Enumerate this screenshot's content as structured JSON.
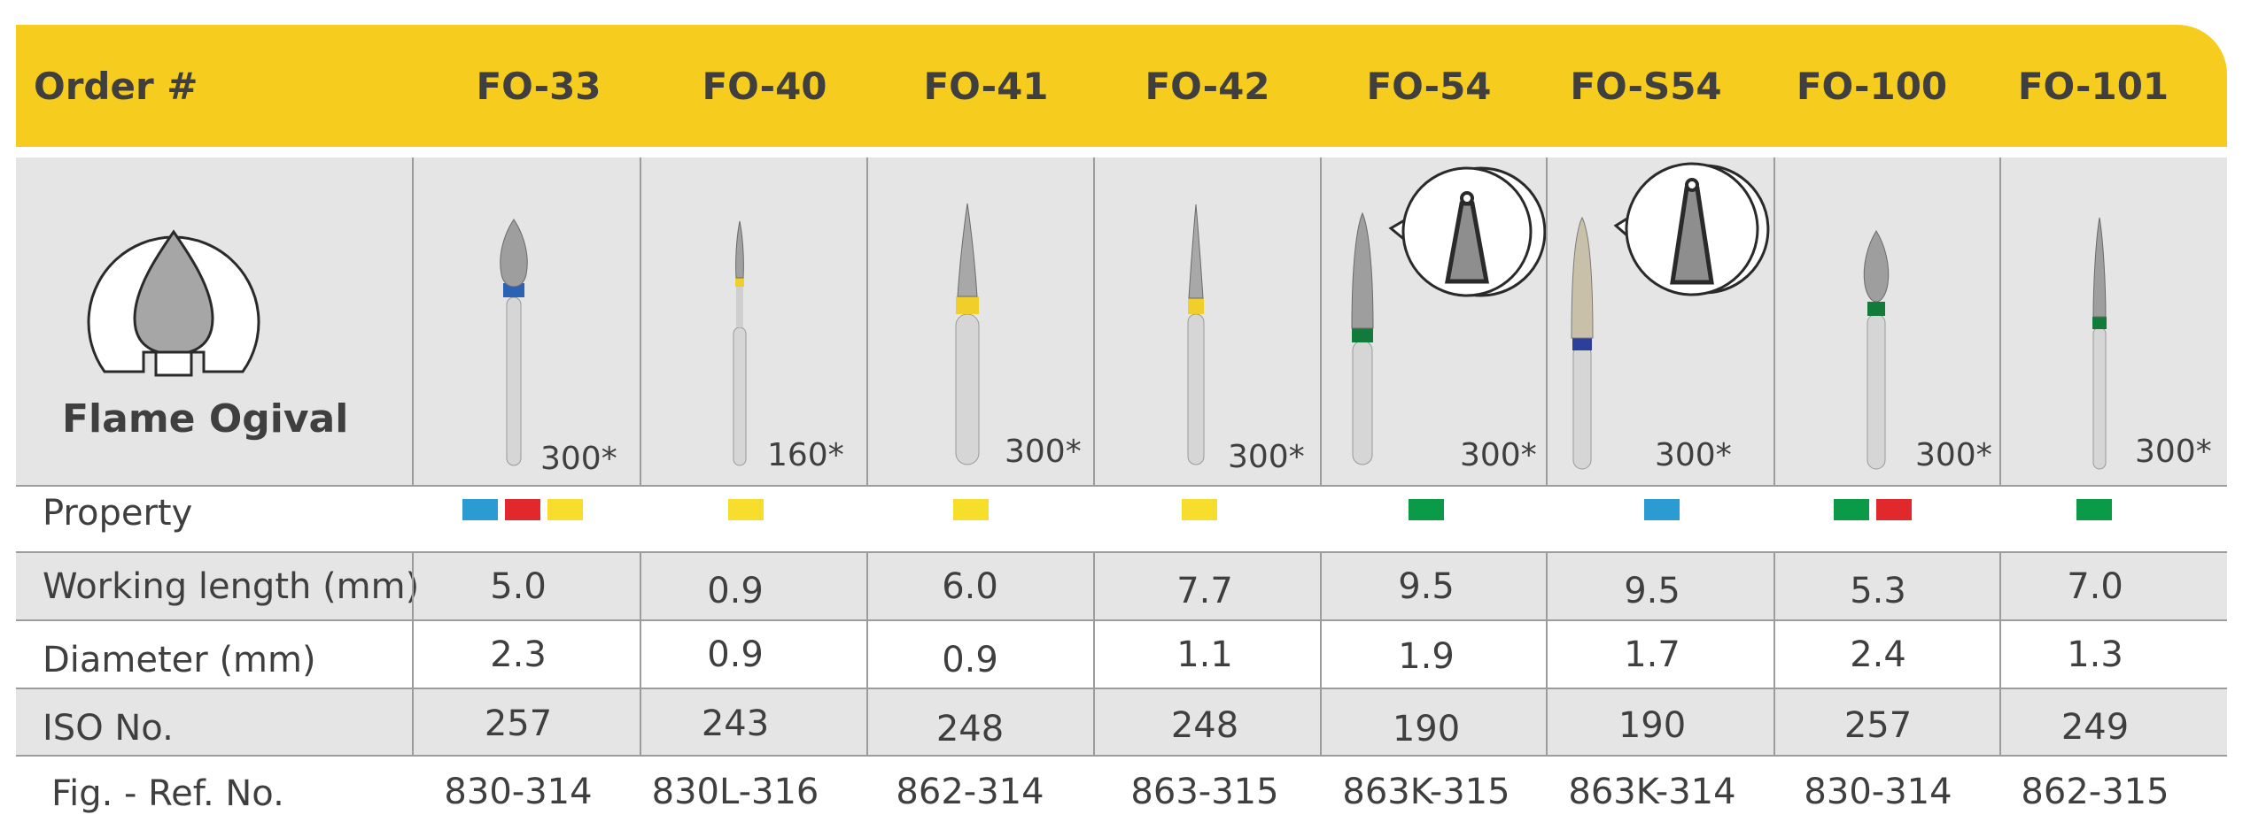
{
  "header": {
    "order_label": "Order #",
    "codes": [
      "FO-33",
      "FO-40",
      "FO-41",
      "FO-42",
      "FO-54",
      "FO-S54",
      "FO-100",
      "FO-101"
    ]
  },
  "shape": {
    "name": "Flame Ogival",
    "icon": "flame-ogival-shape-icon"
  },
  "grits": [
    "300*",
    "160*",
    "300*",
    "300*",
    "300*",
    "300*",
    "300*",
    "300*"
  ],
  "rows": {
    "property_label": "Property",
    "working_label": "Working length (mm)",
    "diameter_label": "Diameter (mm)",
    "iso_label": "ISO No.",
    "ref_label": "Fig. - Ref. No."
  },
  "property_colors": [
    [
      "#2b9bd3",
      "#e0282d",
      "#f7dd2c"
    ],
    [
      "#f7dd2c"
    ],
    [
      "#f7dd2c"
    ],
    [
      "#f7dd2c"
    ],
    [
      "#0a9a48"
    ],
    [
      "#2b9bd3"
    ],
    [
      "#0a9a48",
      "#e0282d"
    ],
    [
      "#0a9a48"
    ]
  ],
  "working_length": [
    "5.0",
    "0.9",
    "6.0",
    "7.7",
    "9.5",
    "9.5",
    "5.3",
    "7.0"
  ],
  "diameter": [
    "2.3",
    "0.9",
    "0.9",
    "1.1",
    "1.9",
    "1.7",
    "2.4",
    "1.3"
  ],
  "iso": [
    "257",
    "243",
    "248",
    "248",
    "190",
    "190",
    "257",
    "249"
  ],
  "ref": [
    "830-314",
    "830L-316",
    "862-314",
    "863-315",
    "863K-315",
    "863K-314",
    "830-314",
    "862-315"
  ],
  "colors": {
    "header": "#f6cc1f",
    "cell_grey": "#e5e5e5",
    "grid": "#9c9c9c",
    "text": "#3f3f3f"
  }
}
